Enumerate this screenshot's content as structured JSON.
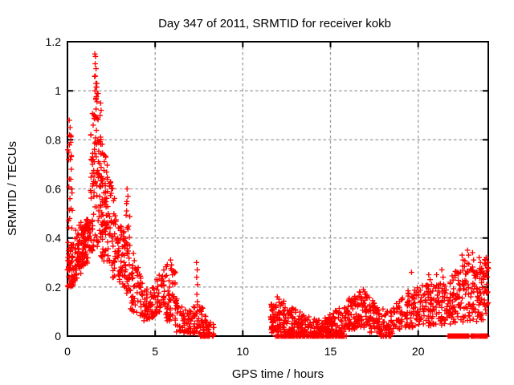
{
  "chart_data": {
    "type": "scatter",
    "title": "Day 347 of 2011, SRMTID for receiver kokb",
    "xlabel": "GPS time / hours",
    "ylabel": "SRMTID / TECUs",
    "xlim": [
      0,
      24
    ],
    "ylim": [
      0,
      1.2
    ],
    "xticks": [
      0,
      5,
      10,
      15,
      20
    ],
    "xtick_labels": [
      "0",
      "5",
      "10",
      "15",
      "20"
    ],
    "yticks": [
      0,
      0.2,
      0.4,
      0.6,
      0.8,
      1,
      1.2
    ],
    "ytick_labels": [
      "0",
      "0.2",
      "0.4",
      "0.6",
      "0.8",
      "1",
      "1.2"
    ],
    "grid": true,
    "legend": "none",
    "marker": "plus",
    "marker_color": "#ff0000",
    "grid_color": "#a0a0a0",
    "border_color": "#000000",
    "text_color": "#000000",
    "background": "#ffffff",
    "seed": 42,
    "points_outliers": [
      [
        0.1,
        0.88
      ],
      [
        0.15,
        0.85
      ],
      [
        0.12,
        0.82
      ],
      [
        0.19,
        0.79
      ],
      [
        0.08,
        0.75
      ],
      [
        0.16,
        0.72
      ],
      [
        0.22,
        0.68
      ],
      [
        0.11,
        0.64
      ],
      [
        0.24,
        0.6
      ],
      [
        0.14,
        0.56
      ],
      [
        0.2,
        0.52
      ],
      [
        0.07,
        0.47
      ],
      [
        0.25,
        0.44
      ],
      [
        1.56,
        1.15
      ],
      [
        1.6,
        1.14
      ],
      [
        1.58,
        1.11
      ],
      [
        1.63,
        1.09
      ],
      [
        1.59,
        1.06
      ],
      [
        1.62,
        1.03
      ],
      [
        1.57,
        1.0
      ],
      [
        1.64,
        0.97
      ],
      [
        1.89,
        0.95
      ],
      [
        1.92,
        0.92
      ],
      [
        1.86,
        0.9
      ],
      [
        3.4,
        0.6
      ],
      [
        3.45,
        0.57
      ],
      [
        3.37,
        0.54
      ],
      [
        5.88,
        0.31
      ],
      [
        5.94,
        0.29
      ],
      [
        7.36,
        0.3
      ],
      [
        7.4,
        0.27
      ],
      [
        7.37,
        0.24
      ],
      [
        7.42,
        0.21
      ],
      [
        7.38,
        0.17
      ],
      [
        7.41,
        0.14
      ],
      [
        11.97,
        0.16
      ],
      [
        12.06,
        0.15
      ],
      [
        16.88,
        0.19
      ],
      [
        16.95,
        0.18
      ],
      [
        17.02,
        0.17
      ],
      [
        19.62,
        0.26
      ],
      [
        20.6,
        0.25
      ],
      [
        20.68,
        0.23
      ],
      [
        21.05,
        0.25
      ],
      [
        21.35,
        0.27
      ],
      [
        21.42,
        0.24
      ],
      [
        22.5,
        0.33
      ],
      [
        22.56,
        0.31
      ],
      [
        22.82,
        0.35
      ],
      [
        22.88,
        0.33
      ],
      [
        23.1,
        0.34
      ],
      [
        23.16,
        0.31
      ],
      [
        23.48,
        0.32
      ],
      [
        23.55,
        0.3
      ],
      [
        23.88,
        0.32
      ],
      [
        23.94,
        0.3
      ],
      [
        23.97,
        0.28
      ]
    ],
    "band_format": [
      "x_start",
      "x_end",
      "y_low_start",
      "y_low_end",
      "y_high_start",
      "y_high_end",
      "count",
      "low_bias"
    ],
    "density_bands": [
      [
        0.0,
        0.35,
        0.2,
        0.2,
        0.38,
        0.4,
        52,
        1.25
      ],
      [
        0.02,
        0.3,
        0.42,
        0.42,
        0.88,
        0.86,
        14,
        1.0
      ],
      [
        0.35,
        0.9,
        0.22,
        0.26,
        0.42,
        0.48,
        60,
        1.2
      ],
      [
        0.85,
        1.3,
        0.28,
        0.3,
        0.43,
        0.52,
        70,
        1.1
      ],
      [
        1.3,
        1.55,
        0.32,
        0.34,
        0.78,
        1.1,
        42,
        1.05
      ],
      [
        1.55,
        1.75,
        0.34,
        0.36,
        1.13,
        1.0,
        42,
        1.0
      ],
      [
        1.75,
        2.0,
        0.34,
        0.32,
        0.97,
        0.8,
        46,
        1.1
      ],
      [
        2.0,
        2.45,
        0.3,
        0.28,
        0.78,
        0.66,
        62,
        1.15
      ],
      [
        2.45,
        3.1,
        0.24,
        0.21,
        0.65,
        0.45,
        72,
        1.2
      ],
      [
        3.1,
        3.32,
        0.21,
        0.19,
        0.44,
        0.42,
        24,
        1.2
      ],
      [
        3.32,
        3.56,
        0.17,
        0.16,
        0.57,
        0.5,
        30,
        1.1
      ],
      [
        3.56,
        4.3,
        0.11,
        0.07,
        0.4,
        0.21,
        56,
        1.3
      ],
      [
        4.3,
        4.78,
        0.06,
        0.07,
        0.2,
        0.19,
        42,
        1.2
      ],
      [
        4.78,
        5.55,
        0.07,
        0.11,
        0.19,
        0.29,
        58,
        1.2
      ],
      [
        5.55,
        6.15,
        0.06,
        0.05,
        0.31,
        0.27,
        52,
        1.15
      ],
      [
        6.15,
        6.9,
        0.01,
        0.01,
        0.16,
        0.1,
        46,
        1.25
      ],
      [
        6.9,
        7.45,
        0.01,
        0.01,
        0.11,
        0.13,
        36,
        1.2
      ],
      [
        7.45,
        8.1,
        0.0,
        0.0,
        0.15,
        0.08,
        48,
        1.3
      ],
      [
        8.1,
        8.35,
        0.0,
        0.0,
        0.06,
        0.05,
        10,
        1.2
      ],
      [
        11.55,
        12.35,
        0.01,
        0.02,
        0.13,
        0.16,
        74,
        1.3
      ],
      [
        12.35,
        13.3,
        0.01,
        0.01,
        0.13,
        0.1,
        84,
        1.35
      ],
      [
        13.3,
        14.6,
        0.0,
        0.0,
        0.09,
        0.06,
        94,
        1.35
      ],
      [
        14.6,
        15.8,
        0.01,
        0.01,
        0.07,
        0.13,
        86,
        1.3
      ],
      [
        15.8,
        16.5,
        0.02,
        0.03,
        0.14,
        0.18,
        66,
        1.2
      ],
      [
        16.5,
        17.25,
        0.04,
        0.03,
        0.19,
        0.16,
        62,
        1.1
      ],
      [
        17.25,
        17.9,
        0.01,
        0.01,
        0.16,
        0.11,
        52,
        1.2
      ],
      [
        17.9,
        18.55,
        0.0,
        0.0,
        0.12,
        0.1,
        40,
        1.3
      ],
      [
        18.55,
        19.4,
        0.02,
        0.03,
        0.12,
        0.19,
        58,
        1.2
      ],
      [
        19.4,
        20.3,
        0.03,
        0.04,
        0.19,
        0.22,
        66,
        1.15
      ],
      [
        20.3,
        21.1,
        0.04,
        0.04,
        0.21,
        0.22,
        64,
        1.15
      ],
      [
        21.1,
        21.9,
        0.04,
        0.05,
        0.23,
        0.22,
        60,
        1.15
      ],
      [
        21.9,
        22.6,
        0.05,
        0.05,
        0.27,
        0.3,
        56,
        1.1
      ],
      [
        22.6,
        23.3,
        0.05,
        0.05,
        0.31,
        0.29,
        56,
        1.1
      ],
      [
        23.3,
        23.75,
        0.04,
        0.05,
        0.28,
        0.28,
        44,
        1.1
      ],
      [
        23.75,
        24.0,
        0.05,
        0.08,
        0.32,
        0.3,
        30,
        1.0
      ]
    ],
    "zero_run_format": [
      "x_start",
      "x_end",
      "count"
    ],
    "zero_line_runs": [
      [
        7.55,
        8.05,
        9
      ],
      [
        11.85,
        15.9,
        72
      ],
      [
        17.85,
        18.5,
        8
      ],
      [
        21.7,
        22.9,
        34
      ],
      [
        23.0,
        23.95,
        24
      ]
    ],
    "data_gaps": [
      [
        8.35,
        11.55
      ]
    ]
  }
}
